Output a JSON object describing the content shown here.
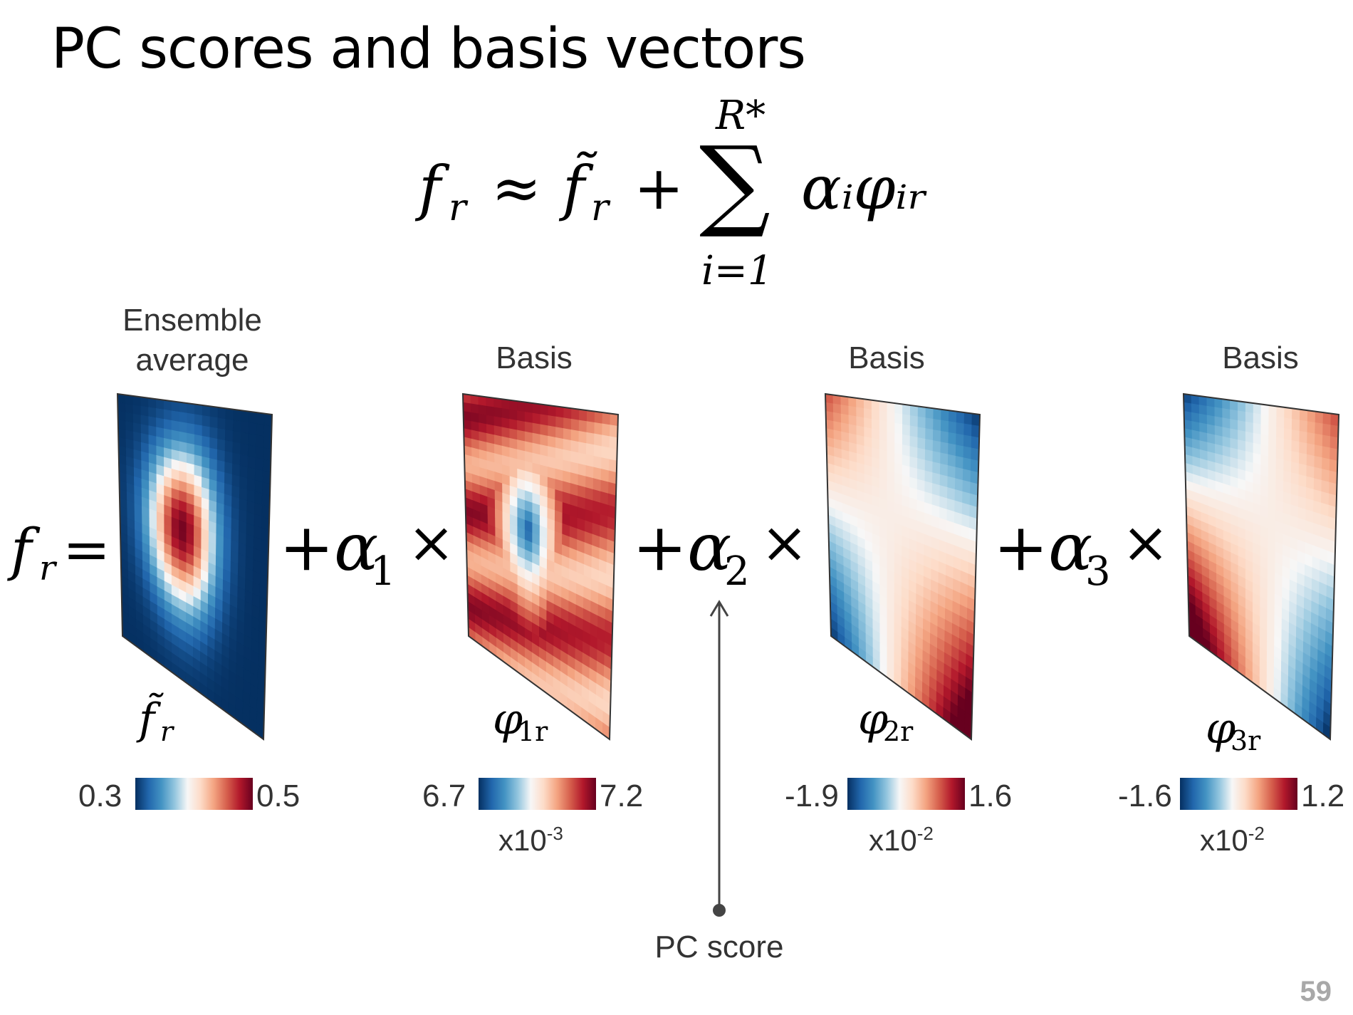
{
  "title": "PC scores and basis vectors",
  "equation": {
    "lhs": "f",
    "lhs_sub": "r",
    "approx": "≈",
    "mean": "f̃",
    "mean_sub": "r",
    "plus": "+",
    "sum_upper": "R*",
    "sum_lower": "i=1",
    "term": "αᵢφᵢᵣ"
  },
  "expansion": {
    "lhs": "f",
    "lhs_sub": "r",
    "equals": "=",
    "terms": [
      {
        "prefix": "+α",
        "sub": "1",
        "times": "×"
      },
      {
        "prefix": "+α",
        "sub": "2",
        "times": "×"
      },
      {
        "prefix": "+α",
        "sub": "3",
        "times": "×"
      }
    ]
  },
  "panels": [
    {
      "header": [
        "Ensemble",
        "average"
      ],
      "symbol": "f̃",
      "symbol_sub": "r",
      "cbar_min": "0.3",
      "cbar_max": "0.5",
      "scale": "",
      "pattern": "mean"
    },
    {
      "header": [
        "Basis"
      ],
      "symbol": "φ",
      "symbol_sub": "1r",
      "cbar_min": "6.7",
      "cbar_max": "7.2",
      "scale": "x10",
      "scale_exp": "-3",
      "pattern": "basis1"
    },
    {
      "header": [
        "Basis"
      ],
      "symbol": "φ",
      "symbol_sub": "2r",
      "cbar_min": "-1.9",
      "cbar_max": "1.6",
      "scale": "x10",
      "scale_exp": "-2",
      "pattern": "basis2"
    },
    {
      "header": [
        "Basis"
      ],
      "symbol": "φ",
      "symbol_sub": "3r",
      "cbar_min": "-1.6",
      "cbar_max": "1.2",
      "scale": "x10",
      "scale_exp": "-2",
      "pattern": "basis3"
    }
  ],
  "annotation": "PC score",
  "page_number": "59",
  "colors": {
    "colormap": [
      "#053061",
      "#2166ac",
      "#4393c3",
      "#92c5de",
      "#f7f7f7",
      "#fddbc7",
      "#f4a582",
      "#d6604d",
      "#b2182b",
      "#67001f"
    ],
    "arrow": "#444444"
  }
}
